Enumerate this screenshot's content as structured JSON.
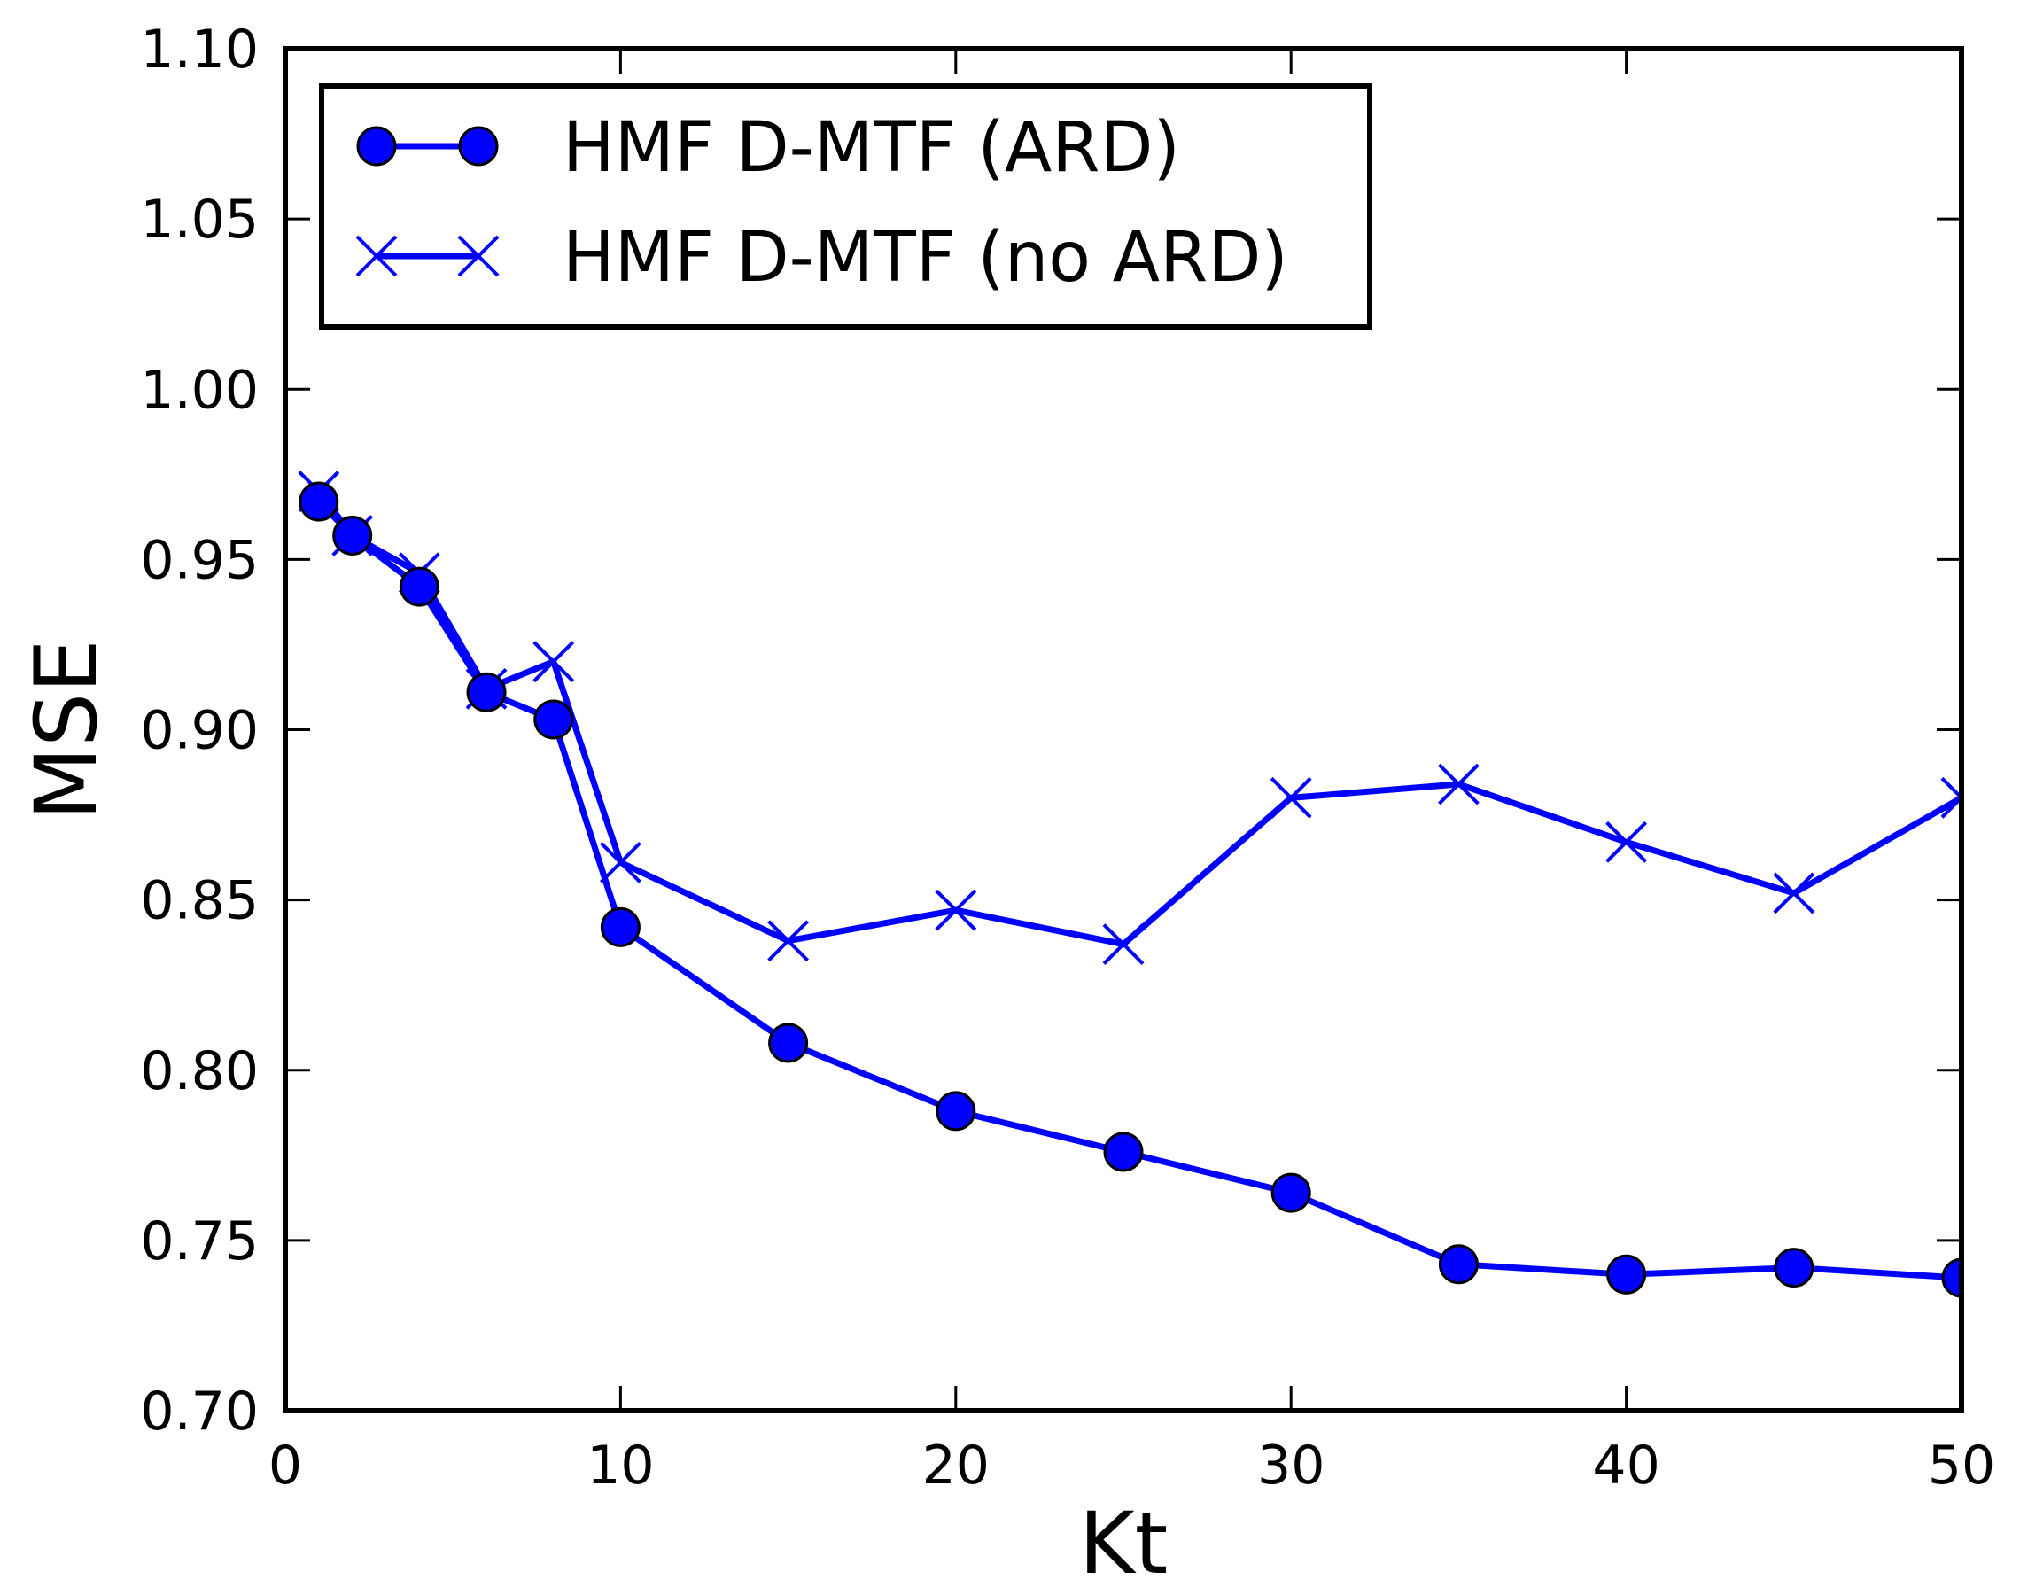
{
  "chart_data": {
    "type": "line",
    "title": "",
    "xlabel": "Kt",
    "ylabel": "MSE",
    "xlim": [
      0,
      50
    ],
    "ylim": [
      0.7,
      1.1
    ],
    "xticks": [
      0,
      10,
      20,
      30,
      40,
      50
    ],
    "xtick_labels": [
      "0",
      "10",
      "20",
      "30",
      "40",
      "50"
    ],
    "yticks": [
      0.7,
      0.75,
      0.8,
      0.85,
      0.9,
      0.95,
      1.0,
      1.05,
      1.1
    ],
    "ytick_labels": [
      "0.70",
      "0.75",
      "0.80",
      "0.85",
      "0.90",
      "0.95",
      "1.00",
      "1.05",
      "1.10"
    ],
    "grid": false,
    "legend_position": "top-left",
    "series": [
      {
        "name": "HMF D-MTF (ARD)",
        "marker": "circle",
        "color": "#0000ff",
        "x": [
          1,
          2,
          4,
          6,
          8,
          10,
          15,
          20,
          25,
          30,
          35,
          40,
          45,
          50
        ],
        "y": [
          0.967,
          0.957,
          0.942,
          0.911,
          0.903,
          0.842,
          0.808,
          0.788,
          0.776,
          0.764,
          0.743,
          0.74,
          0.742,
          0.739
        ]
      },
      {
        "name": "HMF D-MTF (no ARD)",
        "marker": "x",
        "color": "#0000ff",
        "x": [
          1,
          2,
          4,
          6,
          8,
          10,
          15,
          20,
          25,
          30,
          35,
          40,
          45,
          50
        ],
        "y": [
          0.97,
          0.957,
          0.946,
          0.912,
          0.92,
          0.861,
          0.838,
          0.847,
          0.837,
          0.88,
          0.884,
          0.867,
          0.852,
          0.88
        ]
      }
    ]
  }
}
